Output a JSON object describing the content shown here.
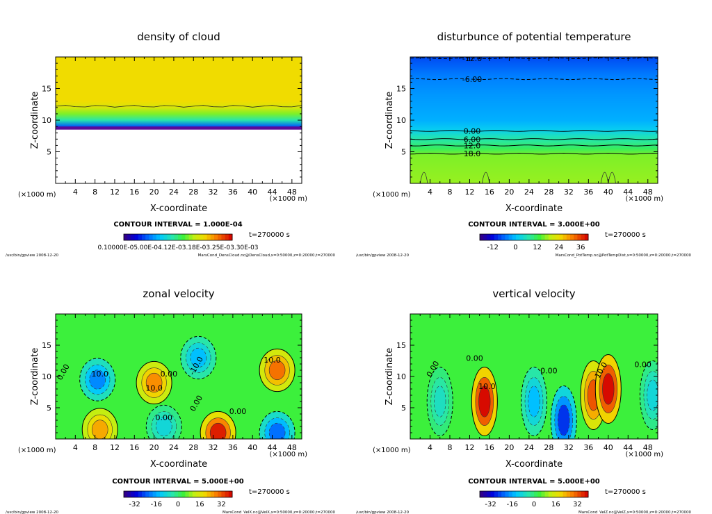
{
  "panels": [
    {
      "id": "density",
      "title": "density of cloud",
      "contour_interval": "CONTOUR INTERVAL = 1.000E-04",
      "time": "t=270000 s",
      "footer_left": "/usr/bin/gpview   2008-12-20",
      "footer_right": "MarsCond_DensCloud.nc@DensCloud,x=0:50000,z=0:20000,t=270000",
      "colorbar_labels": [
        "0.10000E-05",
        "0.50000E-04",
        "0.12000E-03",
        "0.18000E-03",
        "0.25000E-03",
        "0.30000E-03"
      ],
      "colorbar_text": "0.10000E-05.00E-04.12E-03.18E-03.25E-03.30E-03"
    },
    {
      "id": "pottemp",
      "title": "disturbunce of potential temperature",
      "contour_interval": "CONTOUR INTERVAL = 3.000E+00",
      "time": "t=270000 s",
      "footer_left": "/usr/bin/gpview   2008-12-20",
      "footer_right": "MarsCond_PotTemp.nc@PotTempDist,x=0:50000,z=0:20000,t=270000",
      "colorbar_labels": [
        "-12",
        "0",
        "12",
        "24",
        "36"
      ],
      "contour_labels": [
        "-12.0",
        "-6.00",
        "0.00",
        "6.00",
        "12.0",
        "18.0"
      ]
    },
    {
      "id": "velx",
      "title": "zonal velocity",
      "contour_interval": "CONTOUR INTERVAL = 5.000E+00",
      "time": "t=270000 s",
      "footer_left": "/usr/bin/gpview   2008-12-20",
      "footer_right": "MarsCond_VelX.nc@VelX,x=0:50000,z=0:20000,t=270000",
      "colorbar_labels": [
        "-32",
        "-16",
        "0",
        "16",
        "32"
      ],
      "contour_labels": [
        "0.00",
        "10.0",
        "10.0",
        "-10.0",
        "10.0",
        "0.00",
        "0.00",
        "0.00",
        "0.00"
      ]
    },
    {
      "id": "velz",
      "title": "vertical velocity",
      "contour_interval": "CONTOUR INTERVAL = 5.000E+00",
      "time": "t=270000 s",
      "footer_left": "/usr/bin/gpview   2008-12-20",
      "footer_right": "MarsCond_VelZ.nc@VelZ,x=0:50000,z=0:20000,t=270000",
      "colorbar_labels": [
        "-32",
        "-16",
        "0",
        "16",
        "32"
      ],
      "contour_labels": [
        "0.00",
        "0.00",
        "10.0",
        "10.0",
        "0.00",
        "0.00"
      ]
    }
  ],
  "axes": {
    "xlabel": "X-coordinate",
    "ylabel": "Z-coordinate",
    "unit": "(×1000 m)",
    "xticks": [
      "4",
      "8",
      "12",
      "16",
      "20",
      "24",
      "28",
      "32",
      "36",
      "40",
      "44",
      "48"
    ],
    "yticks": [
      "5",
      "10",
      "15"
    ]
  },
  "chart_data": [
    {
      "type": "heatmap",
      "title": "density of cloud",
      "xlabel": "X-coordinate",
      "ylabel": "Z-coordinate",
      "xlim": [
        0,
        50
      ],
      "ylim": [
        0,
        20
      ],
      "xticks": [
        4,
        8,
        12,
        16,
        20,
        24,
        28,
        32,
        36,
        40,
        44,
        48
      ],
      "yticks": [
        5,
        10,
        15
      ],
      "profile_z": [
        0,
        8.5,
        9,
        10,
        11,
        12,
        13,
        20
      ],
      "profile_level": [
        null,
        0.0,
        0.2,
        0.45,
        0.6,
        0.7,
        0.75,
        0.75
      ]
    },
    {
      "type": "heatmap",
      "title": "disturbunce of potential temperature",
      "xlabel": "X-coordinate",
      "ylabel": "Z-coordinate",
      "xlim": [
        0,
        50
      ],
      "ylim": [
        0,
        20
      ],
      "profile_z": [
        0,
        4.5,
        5.5,
        6.5,
        7.5,
        8.5,
        10,
        14,
        17,
        20
      ],
      "profile_level": [
        0.62,
        0.6,
        0.52,
        0.47,
        0.42,
        0.35,
        0.3,
        0.27,
        0.24,
        0.18
      ],
      "contour_levels": [
        {
          "label": "-12.0",
          "z": 19.8
        },
        {
          "label": "-6.00",
          "z": 16.5
        },
        {
          "label": "0.00",
          "z": 8.3
        },
        {
          "label": "6.00",
          "z": 7.0
        },
        {
          "label": "12.0",
          "z": 6.0
        },
        {
          "label": "18.0",
          "z": 4.7
        }
      ]
    },
    {
      "type": "heatmap",
      "title": "zonal velocity",
      "xlabel": "X-coordinate",
      "ylabel": "Z-coordinate",
      "xlim": [
        0,
        50
      ],
      "ylim": [
        0,
        20
      ],
      "features": [
        {
          "x": 8.5,
          "z": 9.5,
          "value": -18
        },
        {
          "x": 20,
          "z": 9,
          "value": 18
        },
        {
          "x": 29,
          "z": 13,
          "value": -14
        },
        {
          "x": 45,
          "z": 11,
          "value": 20
        },
        {
          "x": 33,
          "z": 1,
          "value": 26
        },
        {
          "x": 45,
          "z": 1,
          "value": -20
        },
        {
          "x": 9,
          "z": 1.5,
          "value": 16
        },
        {
          "x": 22,
          "z": 2,
          "value": -10
        }
      ]
    },
    {
      "type": "heatmap",
      "title": "vertical velocity",
      "xlabel": "X-coordinate",
      "ylabel": "Z-coordinate",
      "xlim": [
        0,
        50
      ],
      "ylim": [
        0,
        20
      ],
      "features": [
        {
          "x": 15,
          "z": 6,
          "value": 30
        },
        {
          "x": 25,
          "z": 6,
          "value": -14
        },
        {
          "x": 37,
          "z": 7,
          "value": 22
        },
        {
          "x": 40,
          "z": 8,
          "value": 30
        },
        {
          "x": 31,
          "z": 3,
          "value": -24
        },
        {
          "x": 6,
          "z": 6,
          "value": -8
        },
        {
          "x": 49,
          "z": 7,
          "value": -10
        }
      ]
    }
  ]
}
